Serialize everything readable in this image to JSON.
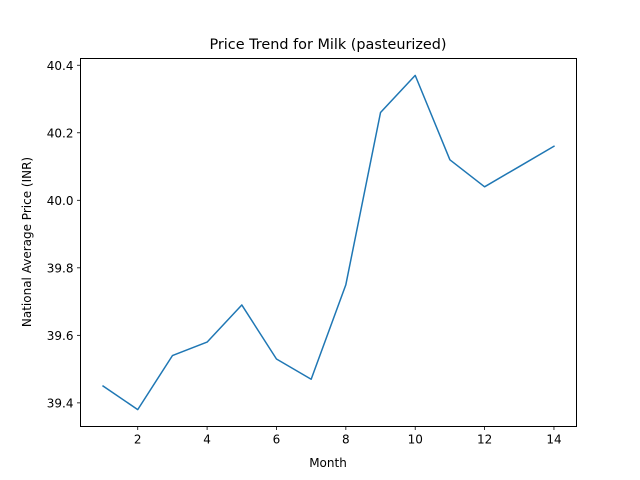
{
  "chart_data": {
    "type": "line",
    "title": "Price Trend for Milk (pasteurized)",
    "xlabel": "Month",
    "ylabel": "National Average Price (INR)",
    "x": [
      1,
      2,
      3,
      4,
      5,
      6,
      7,
      8,
      9,
      10,
      11,
      12,
      13,
      14
    ],
    "series": [
      {
        "values": [
          39.45,
          39.38,
          39.54,
          39.58,
          39.69,
          39.53,
          39.47,
          39.75,
          40.26,
          40.37,
          40.12,
          40.04,
          40.1,
          40.16
        ],
        "color": "#1f77b4"
      }
    ],
    "xlim": [
      0.35,
      14.65
    ],
    "ylim": [
      39.33,
      40.42
    ],
    "xticks": [
      2,
      4,
      6,
      8,
      10,
      12,
      14
    ],
    "xtick_labels": [
      "2",
      "4",
      "6",
      "8",
      "10",
      "12",
      "14"
    ],
    "yticks": [
      39.4,
      39.6,
      39.8,
      40.0,
      40.2,
      40.4
    ],
    "ytick_labels": [
      "39.4",
      "39.6",
      "39.8",
      "40.0",
      "40.2",
      "40.4"
    ],
    "grid": false,
    "legend": false
  }
}
